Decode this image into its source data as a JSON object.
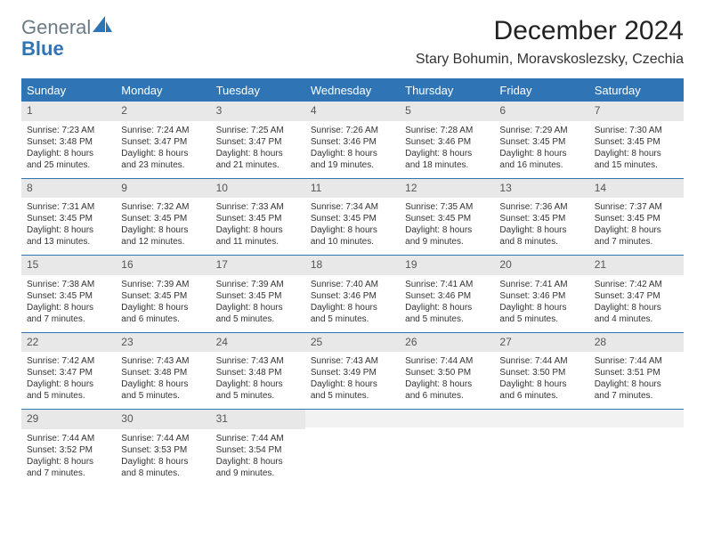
{
  "brand": {
    "word1": "General",
    "word2": "Blue"
  },
  "title": "December 2024",
  "location": "Stary Bohumin, Moravskoslezsky, Czechia",
  "colors": {
    "accent": "#2f75b5",
    "header_bg": "#2f75b5",
    "header_text": "#ffffff",
    "daynum_bg": "#e8e8e8",
    "border": "#2f75b5",
    "text": "#333333",
    "logo_gray": "#6b7b85"
  },
  "day_names": [
    "Sunday",
    "Monday",
    "Tuesday",
    "Wednesday",
    "Thursday",
    "Friday",
    "Saturday"
  ],
  "labels": {
    "sunrise": "Sunrise:",
    "sunset": "Sunset:",
    "daylight": "Daylight:"
  },
  "weeks": [
    [
      {
        "d": "1",
        "sr": "7:23 AM",
        "ss": "3:48 PM",
        "dl": "8 hours and 25 minutes."
      },
      {
        "d": "2",
        "sr": "7:24 AM",
        "ss": "3:47 PM",
        "dl": "8 hours and 23 minutes."
      },
      {
        "d": "3",
        "sr": "7:25 AM",
        "ss": "3:47 PM",
        "dl": "8 hours and 21 minutes."
      },
      {
        "d": "4",
        "sr": "7:26 AM",
        "ss": "3:46 PM",
        "dl": "8 hours and 19 minutes."
      },
      {
        "d": "5",
        "sr": "7:28 AM",
        "ss": "3:46 PM",
        "dl": "8 hours and 18 minutes."
      },
      {
        "d": "6",
        "sr": "7:29 AM",
        "ss": "3:45 PM",
        "dl": "8 hours and 16 minutes."
      },
      {
        "d": "7",
        "sr": "7:30 AM",
        "ss": "3:45 PM",
        "dl": "8 hours and 15 minutes."
      }
    ],
    [
      {
        "d": "8",
        "sr": "7:31 AM",
        "ss": "3:45 PM",
        "dl": "8 hours and 13 minutes."
      },
      {
        "d": "9",
        "sr": "7:32 AM",
        "ss": "3:45 PM",
        "dl": "8 hours and 12 minutes."
      },
      {
        "d": "10",
        "sr": "7:33 AM",
        "ss": "3:45 PM",
        "dl": "8 hours and 11 minutes."
      },
      {
        "d": "11",
        "sr": "7:34 AM",
        "ss": "3:45 PM",
        "dl": "8 hours and 10 minutes."
      },
      {
        "d": "12",
        "sr": "7:35 AM",
        "ss": "3:45 PM",
        "dl": "8 hours and 9 minutes."
      },
      {
        "d": "13",
        "sr": "7:36 AM",
        "ss": "3:45 PM",
        "dl": "8 hours and 8 minutes."
      },
      {
        "d": "14",
        "sr": "7:37 AM",
        "ss": "3:45 PM",
        "dl": "8 hours and 7 minutes."
      }
    ],
    [
      {
        "d": "15",
        "sr": "7:38 AM",
        "ss": "3:45 PM",
        "dl": "8 hours and 7 minutes."
      },
      {
        "d": "16",
        "sr": "7:39 AM",
        "ss": "3:45 PM",
        "dl": "8 hours and 6 minutes."
      },
      {
        "d": "17",
        "sr": "7:39 AM",
        "ss": "3:45 PM",
        "dl": "8 hours and 5 minutes."
      },
      {
        "d": "18",
        "sr": "7:40 AM",
        "ss": "3:46 PM",
        "dl": "8 hours and 5 minutes."
      },
      {
        "d": "19",
        "sr": "7:41 AM",
        "ss": "3:46 PM",
        "dl": "8 hours and 5 minutes."
      },
      {
        "d": "20",
        "sr": "7:41 AM",
        "ss": "3:46 PM",
        "dl": "8 hours and 5 minutes."
      },
      {
        "d": "21",
        "sr": "7:42 AM",
        "ss": "3:47 PM",
        "dl": "8 hours and 4 minutes."
      }
    ],
    [
      {
        "d": "22",
        "sr": "7:42 AM",
        "ss": "3:47 PM",
        "dl": "8 hours and 5 minutes."
      },
      {
        "d": "23",
        "sr": "7:43 AM",
        "ss": "3:48 PM",
        "dl": "8 hours and 5 minutes."
      },
      {
        "d": "24",
        "sr": "7:43 AM",
        "ss": "3:48 PM",
        "dl": "8 hours and 5 minutes."
      },
      {
        "d": "25",
        "sr": "7:43 AM",
        "ss": "3:49 PM",
        "dl": "8 hours and 5 minutes."
      },
      {
        "d": "26",
        "sr": "7:44 AM",
        "ss": "3:50 PM",
        "dl": "8 hours and 6 minutes."
      },
      {
        "d": "27",
        "sr": "7:44 AM",
        "ss": "3:50 PM",
        "dl": "8 hours and 6 minutes."
      },
      {
        "d": "28",
        "sr": "7:44 AM",
        "ss": "3:51 PM",
        "dl": "8 hours and 7 minutes."
      }
    ],
    [
      {
        "d": "29",
        "sr": "7:44 AM",
        "ss": "3:52 PM",
        "dl": "8 hours and 7 minutes."
      },
      {
        "d": "30",
        "sr": "7:44 AM",
        "ss": "3:53 PM",
        "dl": "8 hours and 8 minutes."
      },
      {
        "d": "31",
        "sr": "7:44 AM",
        "ss": "3:54 PM",
        "dl": "8 hours and 9 minutes."
      },
      null,
      null,
      null,
      null
    ]
  ]
}
